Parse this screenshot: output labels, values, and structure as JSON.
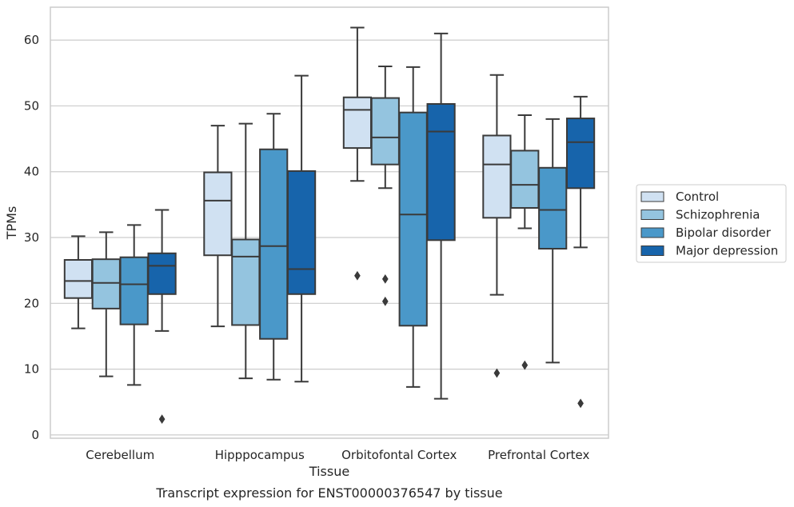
{
  "chart_data": {
    "type": "box",
    "xlabel": "Tissue",
    "ylabel": "TPMs",
    "caption": "Transcript expression for ENST00000376547 by tissue",
    "ylim": [
      -0.5,
      65
    ],
    "yticks": [
      0,
      10,
      20,
      30,
      40,
      50,
      60
    ],
    "grid": "horizontal",
    "legend_position": "right",
    "categories": [
      "Cerebellum",
      "Hipppocampus",
      "Orbitofontal Cortex",
      "Prefrontal Cortex"
    ],
    "series": [
      {
        "name": "Control",
        "color": "#d0e1f2",
        "boxes": [
          {
            "whisker_low": 16.2,
            "q1": 20.8,
            "median": 23.4,
            "q3": 26.6,
            "whisker_high": 30.2,
            "outliers": []
          },
          {
            "whisker_low": 16.5,
            "q1": 27.3,
            "median": 35.6,
            "q3": 39.9,
            "whisker_high": 47.0,
            "outliers": []
          },
          {
            "whisker_low": 38.6,
            "q1": 43.6,
            "median": 49.4,
            "q3": 51.3,
            "whisker_high": 61.9,
            "outliers": [
              24.2
            ]
          },
          {
            "whisker_low": 21.3,
            "q1": 33.0,
            "median": 41.1,
            "q3": 45.5,
            "whisker_high": 54.7,
            "outliers": [
              9.4
            ]
          }
        ]
      },
      {
        "name": "Schizophrenia",
        "color": "#94c4df",
        "boxes": [
          {
            "whisker_low": 8.9,
            "q1": 19.2,
            "median": 23.1,
            "q3": 26.7,
            "whisker_high": 30.8,
            "outliers": []
          },
          {
            "whisker_low": 8.6,
            "q1": 16.7,
            "median": 27.1,
            "q3": 29.7,
            "whisker_high": 47.3,
            "outliers": []
          },
          {
            "whisker_low": 37.5,
            "q1": 41.1,
            "median": 45.2,
            "q3": 51.2,
            "whisker_high": 56.0,
            "outliers": [
              23.7,
              20.3
            ]
          },
          {
            "whisker_low": 31.4,
            "q1": 34.5,
            "median": 38.0,
            "q3": 43.2,
            "whisker_high": 48.6,
            "outliers": [
              10.6
            ]
          }
        ]
      },
      {
        "name": "Bipolar disorder",
        "color": "#4a98c9",
        "boxes": [
          {
            "whisker_low": 7.6,
            "q1": 16.8,
            "median": 22.9,
            "q3": 27.0,
            "whisker_high": 31.9,
            "outliers": []
          },
          {
            "whisker_low": 8.4,
            "q1": 14.6,
            "median": 28.7,
            "q3": 43.4,
            "whisker_high": 48.8,
            "outliers": []
          },
          {
            "whisker_low": 7.3,
            "q1": 16.6,
            "median": 33.5,
            "q3": 49.0,
            "whisker_high": 55.9,
            "outliers": []
          },
          {
            "whisker_low": 11.0,
            "q1": 28.3,
            "median": 34.2,
            "q3": 40.6,
            "whisker_high": 48.0,
            "outliers": []
          }
        ]
      },
      {
        "name": "Major depression",
        "color": "#1764ab",
        "boxes": [
          {
            "whisker_low": 15.8,
            "q1": 21.4,
            "median": 25.7,
            "q3": 27.6,
            "whisker_high": 34.2,
            "outliers": [
              2.4
            ]
          },
          {
            "whisker_low": 8.1,
            "q1": 21.4,
            "median": 25.2,
            "q3": 40.1,
            "whisker_high": 54.6,
            "outliers": []
          },
          {
            "whisker_low": 5.5,
            "q1": 29.6,
            "median": 46.1,
            "q3": 50.3,
            "whisker_high": 61.0,
            "outliers": []
          },
          {
            "whisker_low": 28.5,
            "q1": 37.5,
            "median": 44.5,
            "q3": 48.1,
            "whisker_high": 51.4,
            "outliers": [
              4.8
            ]
          }
        ]
      }
    ]
  }
}
